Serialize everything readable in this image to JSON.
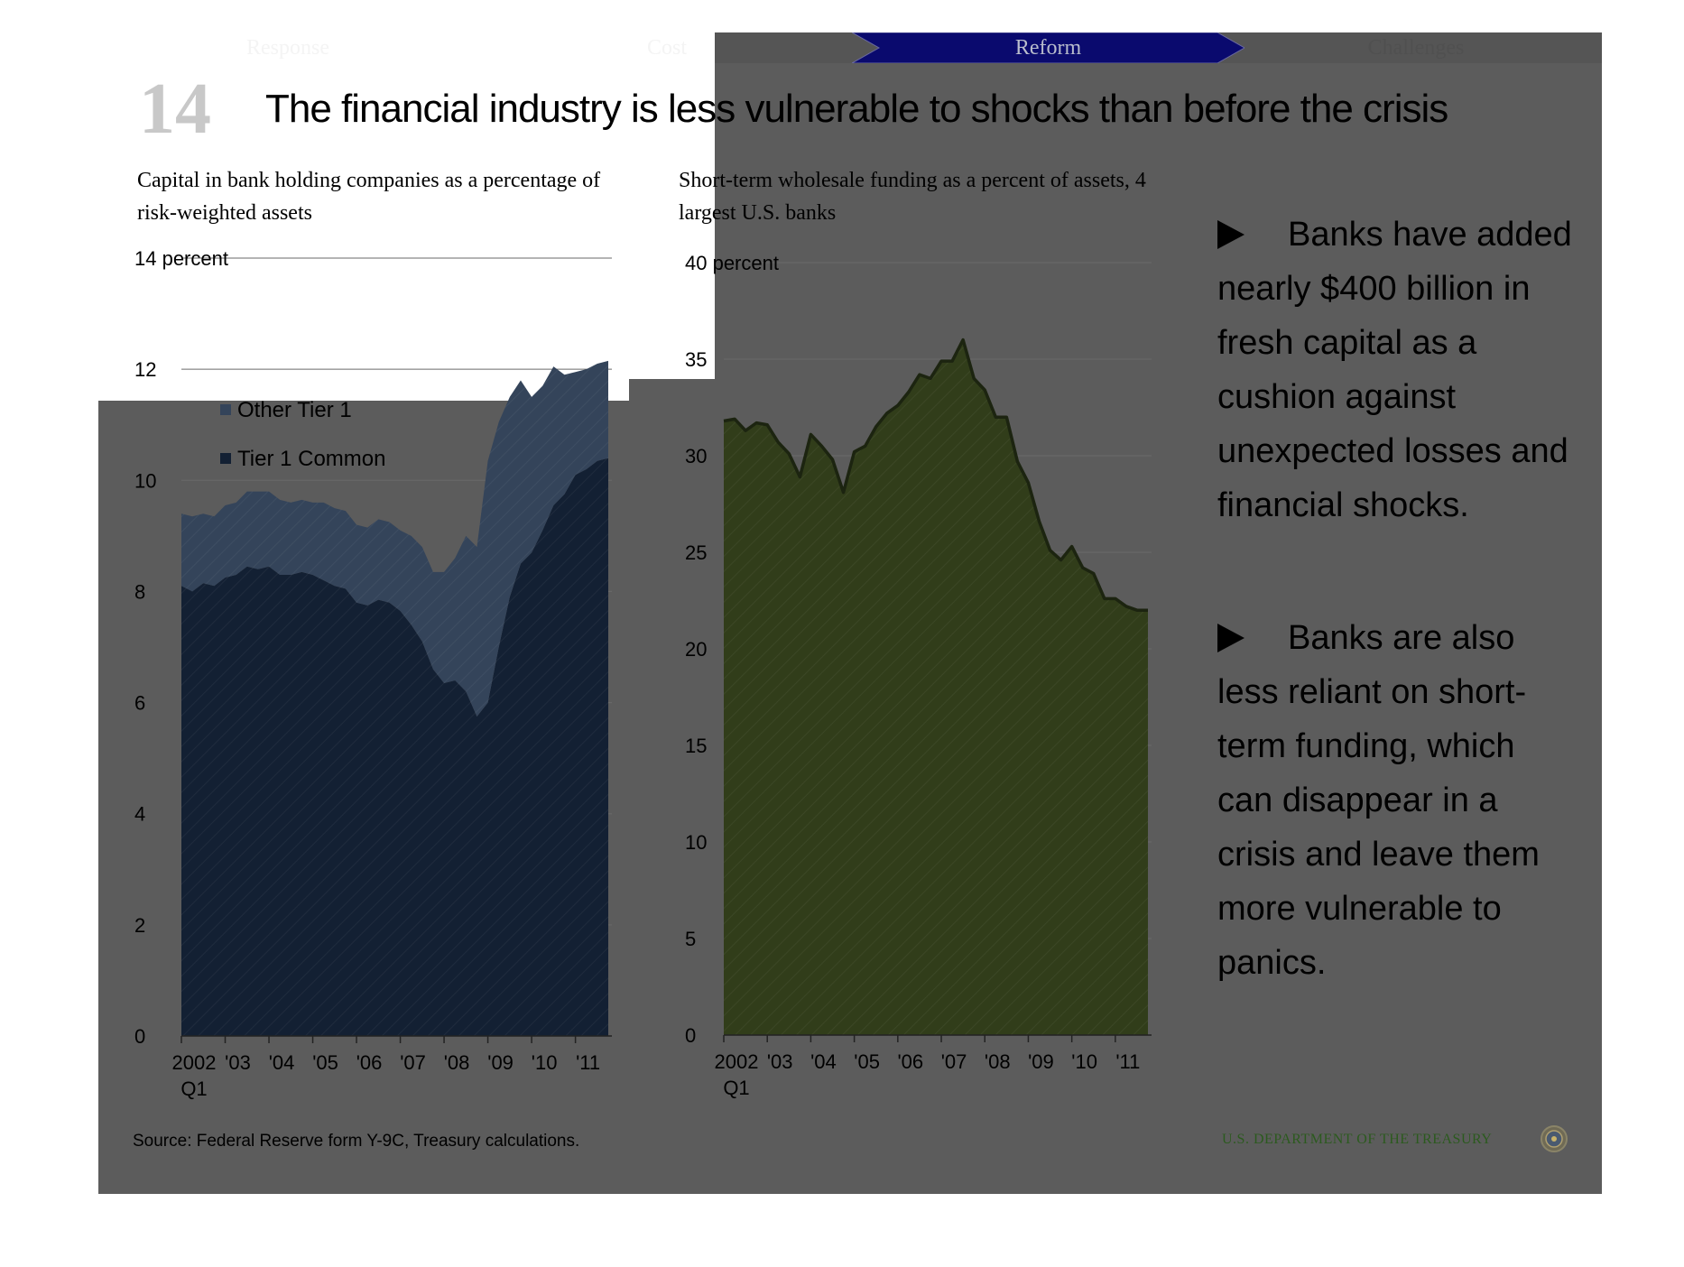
{
  "nav": {
    "tabs": [
      {
        "label": "Response",
        "active": false
      },
      {
        "label": "Cost",
        "active": false
      },
      {
        "label": "Reform",
        "active": true
      },
      {
        "label": "Challenges",
        "active": false
      }
    ],
    "active_color": "#0a0a6e",
    "inactive_color": "#555555"
  },
  "slide": {
    "number": "14",
    "title": "The financial industry is less vulnerable to shocks than before the crisis"
  },
  "bullets": [
    "Banks have added nearly  $400 billion in fresh capital as a cushion against unexpected losses and financial shocks.",
    "Banks are also less reliant on short-term funding, which can disappear in a crisis and leave them more vulnerable to panics."
  ],
  "footer": {
    "source": "Source: Federal Reserve form Y-9C, Treasury calculations.",
    "agency": "U.S. DEPARTMENT OF THE TREASURY"
  },
  "colors": {
    "tier1_common": "#132033",
    "other_tier1": "#34445a",
    "wholesale_funding": "#313d1a"
  },
  "chart_data": [
    {
      "type": "area",
      "stacked": true,
      "title": "Capital in bank holding companies as a percentage of risk-weighted assets",
      "ylabel": "14 percent",
      "ylim": [
        0,
        14
      ],
      "yticks": [
        "0",
        "2",
        "4",
        "6",
        "8",
        "10",
        "12"
      ],
      "xlim": [
        2002.0,
        2011.75
      ],
      "xticks": [
        {
          "label": "2002",
          "sub": "Q1",
          "x": 2002.0
        },
        {
          "label": "'03",
          "x": 2003.0
        },
        {
          "label": "'04",
          "x": 2004.0
        },
        {
          "label": "'05",
          "x": 2005.0
        },
        {
          "label": "'06",
          "x": 2006.0
        },
        {
          "label": "'07",
          "x": 2007.0
        },
        {
          "label": "'08",
          "x": 2008.0
        },
        {
          "label": "'09",
          "x": 2009.0
        },
        {
          "label": "'10",
          "x": 2010.0
        },
        {
          "label": "'11",
          "x": 2011.0
        }
      ],
      "legend": [
        "Other Tier 1",
        "Tier 1 Common"
      ],
      "legend_position": "top-left",
      "grid": true,
      "x": [
        2002.0,
        2002.25,
        2002.5,
        2002.75,
        2003.0,
        2003.25,
        2003.5,
        2003.75,
        2004.0,
        2004.25,
        2004.5,
        2004.75,
        2005.0,
        2005.25,
        2005.5,
        2005.75,
        2006.0,
        2006.25,
        2006.5,
        2006.75,
        2007.0,
        2007.25,
        2007.5,
        2007.75,
        2008.0,
        2008.25,
        2008.5,
        2008.75,
        2009.0,
        2009.25,
        2009.5,
        2009.75,
        2010.0,
        2010.25,
        2010.5,
        2010.75,
        2011.0,
        2011.25,
        2011.5,
        2011.75
      ],
      "series": [
        {
          "name": "Tier 1 Common",
          "values": [
            8.1,
            8.0,
            8.15,
            8.1,
            8.25,
            8.3,
            8.45,
            8.4,
            8.45,
            8.3,
            8.3,
            8.35,
            8.3,
            8.2,
            8.1,
            8.05,
            7.8,
            7.75,
            7.85,
            7.8,
            7.65,
            7.4,
            7.1,
            6.6,
            6.35,
            6.4,
            6.2,
            5.75,
            6.0,
            7.0,
            7.9,
            8.5,
            8.7,
            9.1,
            9.55,
            9.75,
            10.1,
            10.2,
            10.35,
            10.4
          ]
        },
        {
          "name": "Other Tier 1",
          "values": [
            1.3,
            1.35,
            1.25,
            1.25,
            1.3,
            1.3,
            1.35,
            1.4,
            1.35,
            1.35,
            1.3,
            1.3,
            1.3,
            1.4,
            1.4,
            1.4,
            1.4,
            1.4,
            1.45,
            1.45,
            1.45,
            1.6,
            1.7,
            1.75,
            2.0,
            2.2,
            2.8,
            3.05,
            4.35,
            4.05,
            3.6,
            3.3,
            2.8,
            2.6,
            2.5,
            2.15,
            1.85,
            1.8,
            1.75,
            1.75
          ]
        }
      ]
    },
    {
      "type": "area",
      "title": "Short-term wholesale funding as a percent of assets, 4 largest U.S. banks",
      "ylabel": "40 percent",
      "ylim": [
        0,
        40
      ],
      "yticks": [
        "0",
        "5",
        "10",
        "15",
        "20",
        "25",
        "30",
        "35"
      ],
      "xlim": [
        2002.0,
        2011.75
      ],
      "xticks": [
        {
          "label": "2002",
          "sub": "Q1",
          "x": 2002.0
        },
        {
          "label": "'03",
          "x": 2003.0
        },
        {
          "label": "'04",
          "x": 2004.0
        },
        {
          "label": "'05",
          "x": 2005.0
        },
        {
          "label": "'06",
          "x": 2006.0
        },
        {
          "label": "'07",
          "x": 2007.0
        },
        {
          "label": "'08",
          "x": 2008.0
        },
        {
          "label": "'09",
          "x": 2009.0
        },
        {
          "label": "'10",
          "x": 2010.0
        },
        {
          "label": "'11",
          "x": 2011.0
        }
      ],
      "grid": true,
      "x": [
        2002.0,
        2002.25,
        2002.5,
        2002.75,
        2003.0,
        2003.25,
        2003.5,
        2003.75,
        2004.0,
        2004.25,
        2004.5,
        2004.75,
        2005.0,
        2005.25,
        2005.5,
        2005.75,
        2006.0,
        2006.25,
        2006.5,
        2006.75,
        2007.0,
        2007.25,
        2007.5,
        2007.75,
        2008.0,
        2008.25,
        2008.5,
        2008.75,
        2009.0,
        2009.25,
        2009.5,
        2009.75,
        2010.0,
        2010.25,
        2010.5,
        2010.75,
        2011.0,
        2011.25,
        2011.5,
        2011.75
      ],
      "series": [
        {
          "values": [
            31.8,
            31.9,
            31.3,
            31.7,
            31.6,
            30.7,
            30.1,
            28.9,
            31.1,
            30.5,
            29.8,
            28.1,
            30.2,
            30.5,
            31.5,
            32.2,
            32.6,
            33.3,
            34.2,
            34.0,
            34.9,
            34.9,
            36.0,
            34.0,
            33.4,
            32.0,
            32.0,
            29.7,
            28.6,
            26.6,
            25.1,
            24.6,
            25.3,
            24.2,
            23.9,
            22.6,
            22.6,
            22.2,
            22.0,
            22.0
          ]
        }
      ]
    }
  ]
}
